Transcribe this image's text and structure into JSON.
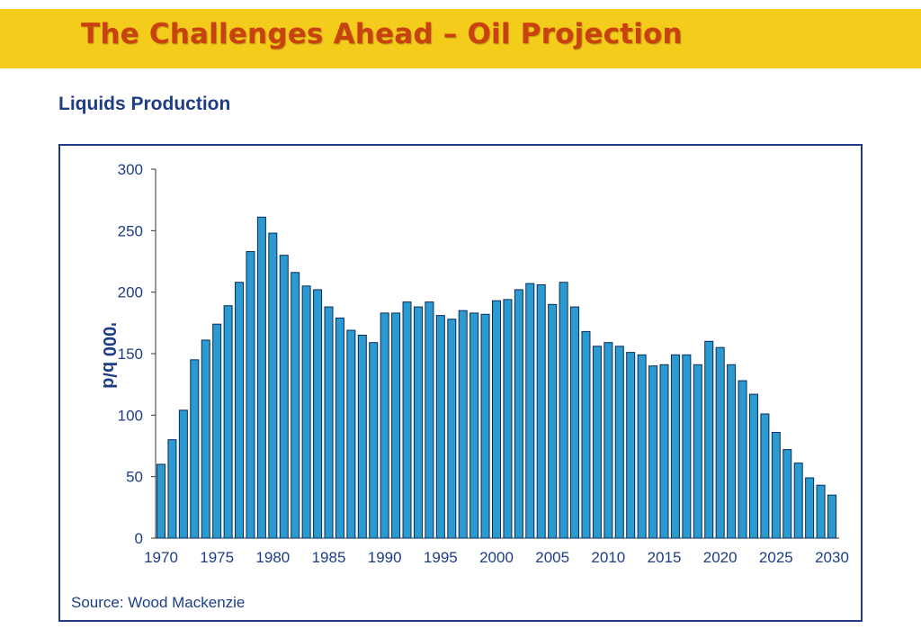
{
  "header": {
    "title": "The Challenges Ahead – Oil Projection"
  },
  "colors": {
    "band": "#f4cc1c",
    "title": "#c8410f",
    "text": "#1d3e86",
    "bar_fill": "#2b9ad1",
    "bar_stroke": "#0a2c5a"
  },
  "chart_data": {
    "type": "bar",
    "title": "Liquids Production",
    "ylabel": "'000 b/d",
    "xlabel": "",
    "source": "Source: Wood Mackenzie",
    "ylim": [
      0,
      300
    ],
    "yticks": [
      0,
      50,
      100,
      150,
      200,
      250,
      300
    ],
    "xticks": [
      1970,
      1975,
      1980,
      1985,
      1990,
      1995,
      2000,
      2005,
      2010,
      2015,
      2020,
      2025,
      2030
    ],
    "categories": [
      1970,
      1971,
      1972,
      1973,
      1974,
      1975,
      1976,
      1977,
      1978,
      1979,
      1980,
      1981,
      1982,
      1983,
      1984,
      1985,
      1986,
      1987,
      1988,
      1989,
      1990,
      1991,
      1992,
      1993,
      1994,
      1995,
      1996,
      1997,
      1998,
      1999,
      2000,
      2001,
      2002,
      2003,
      2004,
      2005,
      2006,
      2007,
      2008,
      2009,
      2010,
      2011,
      2012,
      2013,
      2014,
      2015,
      2016,
      2017,
      2018,
      2019,
      2020,
      2021,
      2022,
      2023,
      2024,
      2025,
      2026,
      2027,
      2028,
      2029,
      2030
    ],
    "values": [
      60,
      80,
      104,
      145,
      161,
      174,
      189,
      208,
      233,
      261,
      248,
      230,
      216,
      205,
      202,
      188,
      179,
      169,
      165,
      159,
      183,
      183,
      192,
      188,
      192,
      181,
      178,
      185,
      183,
      182,
      193,
      194,
      202,
      207,
      206,
      190,
      208,
      188,
      168,
      156,
      159,
      156,
      151,
      149,
      140,
      141,
      149,
      149,
      141,
      160,
      155,
      141,
      128,
      117,
      101,
      86,
      72,
      61,
      49,
      43,
      35
    ]
  }
}
